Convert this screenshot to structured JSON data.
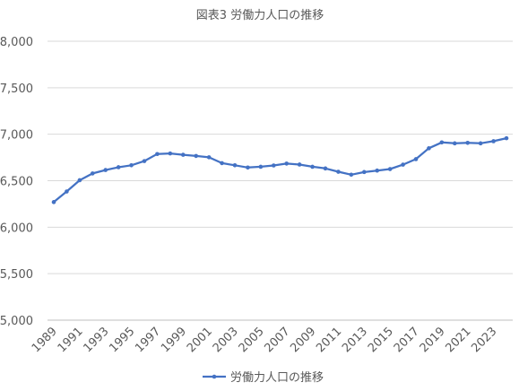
{
  "chart_data": {
    "type": "line",
    "title": "図表3 労働力人口の推移",
    "xlabel": "",
    "ylabel": "",
    "ylim": [
      5000,
      8000
    ],
    "y_ticks": [
      5000,
      5500,
      6000,
      6500,
      7000,
      7500,
      8000
    ],
    "y_tick_labels": [
      "5,000",
      "5,500",
      "6,000",
      "6,500",
      "7,000",
      "7,500",
      "8,000"
    ],
    "x_tick_labels": [
      "1989",
      "1991",
      "1993",
      "1995",
      "1997",
      "1999",
      "2001",
      "2003",
      "2005",
      "2007",
      "2009",
      "2011",
      "2013",
      "2015",
      "2017",
      "2019",
      "2021",
      "2023"
    ],
    "grid": true,
    "legend_position": "bottom",
    "series": [
      {
        "name": "労働力人口の推移",
        "color": "#4472C4",
        "x": [
          1989,
          1990,
          1991,
          1992,
          1993,
          1994,
          1995,
          1996,
          1997,
          1998,
          1999,
          2000,
          2001,
          2002,
          2003,
          2004,
          2005,
          2006,
          2007,
          2008,
          2009,
          2010,
          2011,
          2012,
          2013,
          2014,
          2015,
          2016,
          2017,
          2018,
          2019,
          2020,
          2021,
          2022,
          2023,
          2024
        ],
        "values": [
          6270,
          6384,
          6505,
          6578,
          6615,
          6645,
          6666,
          6711,
          6787,
          6793,
          6779,
          6766,
          6752,
          6689,
          6666,
          6642,
          6650,
          6664,
          6684,
          6674,
          6650,
          6632,
          6596,
          6565,
          6593,
          6609,
          6625,
          6673,
          6732,
          6849,
          6912,
          6902,
          6907,
          6902,
          6925,
          6957
        ]
      }
    ]
  }
}
